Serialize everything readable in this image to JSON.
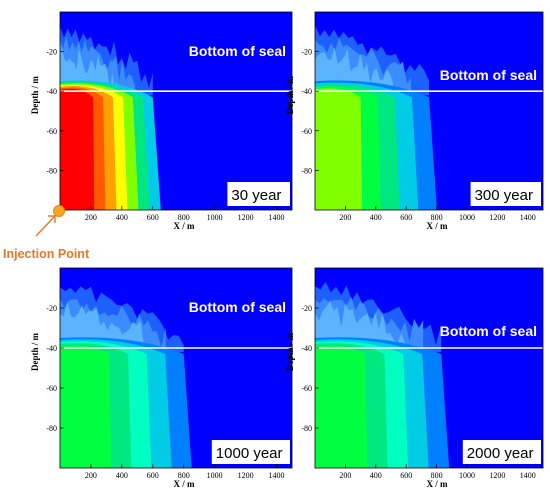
{
  "figure": {
    "annotation": "Injection Point",
    "annotation_color": "#E87722",
    "seal_line_color": "#FFFFFF"
  },
  "chart_data": [
    {
      "type": "heatmap",
      "title": "",
      "label": "30 year",
      "seal_label": "Bottom of seal",
      "xlabel": "X / m",
      "ylabel": "Depth / m",
      "xlim": [
        0,
        1500
      ],
      "ylim": [
        -100,
        0
      ],
      "xticks": [
        200,
        400,
        600,
        800,
        1000,
        1200,
        1400
      ],
      "yticks": [
        -20,
        -40,
        -60,
        -80
      ],
      "seal_depth": -40,
      "plume_front_x": 600,
      "colors": [
        "#FF0000",
        "#FF5A00",
        "#FFA000",
        "#FFFF00",
        "#80FF00",
        "#00E680",
        "#00CCE6"
      ],
      "background": "#0000FF"
    },
    {
      "type": "heatmap",
      "title": "",
      "label": "300 year",
      "seal_label": "Bottom of seal",
      "xlabel": "X / m",
      "ylabel": "Depth / m",
      "xlim": [
        0,
        1500
      ],
      "ylim": [
        -100,
        0
      ],
      "xticks": [
        200,
        400,
        600,
        800,
        1000,
        1200,
        1400
      ],
      "yticks": [
        -20,
        -40,
        -60,
        -80
      ],
      "seal_depth": -40,
      "plume_front_x": 750,
      "colors": [
        "#80FF00",
        "#00FF40",
        "#00E680",
        "#00CCE6",
        "#0080FF"
      ],
      "background": "#0000FF"
    },
    {
      "type": "heatmap",
      "title": "",
      "label": "1000 year",
      "seal_label": "Bottom of seal",
      "xlabel": "X / m",
      "ylabel": "Depth / m",
      "xlim": [
        0,
        1500
      ],
      "ylim": [
        -100,
        0
      ],
      "xticks": [
        200,
        400,
        600,
        800,
        1000,
        1200,
        1400
      ],
      "yticks": [
        -20,
        -40,
        -60,
        -80
      ],
      "seal_depth": -40,
      "plume_front_x": 800,
      "colors": [
        "#00FF40",
        "#00E680",
        "#00FFC0",
        "#00CCE6",
        "#0080FF"
      ],
      "background": "#0000FF"
    },
    {
      "type": "heatmap",
      "title": "",
      "label": "2000 year",
      "seal_label": "Bottom of seal",
      "xlabel": "X / m",
      "ylabel": "Depth / m",
      "xlim": [
        0,
        1500
      ],
      "ylim": [
        -100,
        0
      ],
      "xticks": [
        200,
        400,
        600,
        800,
        1000,
        1200,
        1400
      ],
      "yticks": [
        -20,
        -40,
        -60,
        -80
      ],
      "seal_depth": -40,
      "plume_front_x": 830,
      "colors": [
        "#00FF40",
        "#00E680",
        "#00FFC0",
        "#00CCE6",
        "#0080FF"
      ],
      "background": "#0000FF"
    }
  ]
}
